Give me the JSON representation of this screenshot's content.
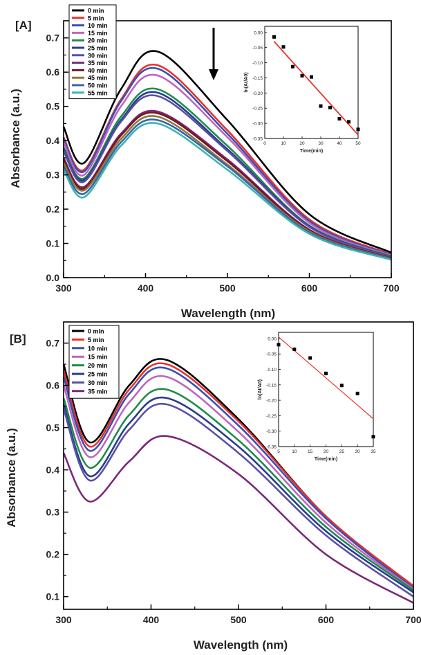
{
  "chart_data": [
    {
      "type": "line",
      "panel_label": "[A]",
      "xlabel": "Wavelength (nm)",
      "ylabel": "Absorbance (a.u.)",
      "xlim": [
        300,
        700
      ],
      "ylim": [
        0.0,
        0.75
      ],
      "xticks": [
        "300",
        "400",
        "500",
        "600",
        "700"
      ],
      "yticks": [
        "0.0",
        "0.1",
        "0.2",
        "0.3",
        "0.4",
        "0.5",
        "0.6",
        "0.7"
      ],
      "legend_position": "top-left",
      "arrow": "down",
      "colors": [
        "#000000",
        "#e8322b",
        "#3a4fb4",
        "#c064c0",
        "#1e8c4a",
        "#283c8c",
        "#5a50a8",
        "#7a2878",
        "#7a1420",
        "#8c7a3c",
        "#3a64a8",
        "#3cb4b4"
      ],
      "series": [
        {
          "name": "0 min",
          "values": [
            {
              "x": 300,
              "y": 0.44
            },
            {
              "x": 325,
              "y": 0.335
            },
            {
              "x": 370,
              "y": 0.55
            },
            {
              "x": 415,
              "y": 0.66
            },
            {
              "x": 500,
              "y": 0.46
            },
            {
              "x": 600,
              "y": 0.185
            },
            {
              "x": 700,
              "y": 0.073
            }
          ]
        },
        {
          "name": "5 min",
          "values": [
            {
              "x": 300,
              "y": 0.41
            },
            {
              "x": 325,
              "y": 0.315
            },
            {
              "x": 370,
              "y": 0.52
            },
            {
              "x": 415,
              "y": 0.62
            },
            {
              "x": 500,
              "y": 0.43
            },
            {
              "x": 600,
              "y": 0.17
            },
            {
              "x": 700,
              "y": 0.068
            }
          ]
        },
        {
          "name": "10 min",
          "values": [
            {
              "x": 300,
              "y": 0.405
            },
            {
              "x": 325,
              "y": 0.31
            },
            {
              "x": 370,
              "y": 0.515
            },
            {
              "x": 415,
              "y": 0.61
            },
            {
              "x": 500,
              "y": 0.42
            },
            {
              "x": 600,
              "y": 0.165
            },
            {
              "x": 700,
              "y": 0.066
            }
          ]
        },
        {
          "name": "15 min",
          "values": [
            {
              "x": 300,
              "y": 0.395
            },
            {
              "x": 325,
              "y": 0.3
            },
            {
              "x": 370,
              "y": 0.5
            },
            {
              "x": 415,
              "y": 0.59
            },
            {
              "x": 500,
              "y": 0.41
            },
            {
              "x": 600,
              "y": 0.16
            },
            {
              "x": 700,
              "y": 0.064
            }
          ]
        },
        {
          "name": "20 min",
          "values": [
            {
              "x": 300,
              "y": 0.38
            },
            {
              "x": 325,
              "y": 0.29
            },
            {
              "x": 370,
              "y": 0.47
            },
            {
              "x": 415,
              "y": 0.55
            },
            {
              "x": 500,
              "y": 0.385
            },
            {
              "x": 600,
              "y": 0.152
            },
            {
              "x": 700,
              "y": 0.062
            }
          ]
        },
        {
          "name": "25 min",
          "values": [
            {
              "x": 300,
              "y": 0.375
            },
            {
              "x": 325,
              "y": 0.285
            },
            {
              "x": 370,
              "y": 0.46
            },
            {
              "x": 415,
              "y": 0.54
            },
            {
              "x": 500,
              "y": 0.375
            },
            {
              "x": 600,
              "y": 0.15
            },
            {
              "x": 700,
              "y": 0.06
            }
          ]
        },
        {
          "name": "30 min",
          "values": [
            {
              "x": 300,
              "y": 0.37
            },
            {
              "x": 325,
              "y": 0.28
            },
            {
              "x": 370,
              "y": 0.455
            },
            {
              "x": 415,
              "y": 0.53
            },
            {
              "x": 500,
              "y": 0.37
            },
            {
              "x": 600,
              "y": 0.148
            },
            {
              "x": 700,
              "y": 0.059
            }
          ]
        },
        {
          "name": "35 min",
          "values": [
            {
              "x": 300,
              "y": 0.35
            },
            {
              "x": 325,
              "y": 0.265
            },
            {
              "x": 370,
              "y": 0.42
            },
            {
              "x": 415,
              "y": 0.485
            },
            {
              "x": 500,
              "y": 0.345
            },
            {
              "x": 600,
              "y": 0.14
            },
            {
              "x": 700,
              "y": 0.057
            }
          ]
        },
        {
          "name": "40 min",
          "values": [
            {
              "x": 300,
              "y": 0.345
            },
            {
              "x": 325,
              "y": 0.26
            },
            {
              "x": 370,
              "y": 0.415
            },
            {
              "x": 415,
              "y": 0.48
            },
            {
              "x": 500,
              "y": 0.34
            },
            {
              "x": 600,
              "y": 0.138
            },
            {
              "x": 700,
              "y": 0.056
            }
          ]
        },
        {
          "name": "45 min",
          "values": [
            {
              "x": 300,
              "y": 0.335
            },
            {
              "x": 325,
              "y": 0.255
            },
            {
              "x": 370,
              "y": 0.405
            },
            {
              "x": 415,
              "y": 0.47
            },
            {
              "x": 500,
              "y": 0.33
            },
            {
              "x": 600,
              "y": 0.135
            },
            {
              "x": 700,
              "y": 0.055
            }
          ]
        },
        {
          "name": "50 min",
          "values": [
            {
              "x": 300,
              "y": 0.325
            },
            {
              "x": 325,
              "y": 0.245
            },
            {
              "x": 370,
              "y": 0.395
            },
            {
              "x": 415,
              "y": 0.46
            },
            {
              "x": 500,
              "y": 0.325
            },
            {
              "x": 600,
              "y": 0.132
            },
            {
              "x": 700,
              "y": 0.054
            }
          ]
        },
        {
          "name": "55 min",
          "values": [
            {
              "x": 300,
              "y": 0.315
            },
            {
              "x": 325,
              "y": 0.235
            },
            {
              "x": 370,
              "y": 0.385
            },
            {
              "x": 415,
              "y": 0.45
            },
            {
              "x": 500,
              "y": 0.315
            },
            {
              "x": 600,
              "y": 0.128
            },
            {
              "x": 700,
              "y": 0.052
            }
          ]
        }
      ],
      "inset": {
        "type": "scatter",
        "xlabel": "Time(min)",
        "ylabel": "ln(At/A0)",
        "xlim": [
          0,
          50
        ],
        "ylim": [
          -0.35,
          0.02
        ],
        "xticks": [
          "0",
          "10",
          "20",
          "30",
          "40",
          "50"
        ],
        "yticks": [
          "0.00",
          "-0.05",
          "-0.10",
          "-0.15",
          "-0.20",
          "-0.25",
          "-0.30",
          "-0.35"
        ],
        "points": [
          {
            "x": 5,
            "y": -0.015
          },
          {
            "x": 10,
            "y": -0.048
          },
          {
            "x": 15,
            "y": -0.113
          },
          {
            "x": 20,
            "y": -0.143
          },
          {
            "x": 25,
            "y": -0.147
          },
          {
            "x": 30,
            "y": -0.243
          },
          {
            "x": 35,
            "y": -0.248
          },
          {
            "x": 40,
            "y": -0.285
          },
          {
            "x": 45,
            "y": -0.295
          },
          {
            "x": 50,
            "y": -0.32
          }
        ],
        "fit": {
          "x": [
            5,
            50
          ],
          "y": [
            -0.03,
            -0.338
          ]
        },
        "fit_color": "#e8322b"
      }
    },
    {
      "type": "line",
      "panel_label": "[B]",
      "xlabel": "Wavelength (nm)",
      "ylabel": "Absorbance (a.u.)",
      "xlim": [
        300,
        700
      ],
      "ylim": [
        0.07,
        0.75
      ],
      "xticks": [
        "300",
        "400",
        "500",
        "600",
        "700"
      ],
      "yticks": [
        "0.1",
        "0.2",
        "0.3",
        "0.4",
        "0.5",
        "0.6",
        "0.7"
      ],
      "legend_position": "top-left",
      "colors": [
        "#000000",
        "#e8322b",
        "#3a4fb4",
        "#c064c0",
        "#1e8c4a",
        "#283c8c",
        "#5a50a8",
        "#7a2878"
      ],
      "series": [
        {
          "name": "0 min",
          "values": [
            {
              "x": 300,
              "y": 0.65
            },
            {
              "x": 330,
              "y": 0.465
            },
            {
              "x": 375,
              "y": 0.6
            },
            {
              "x": 418,
              "y": 0.66
            },
            {
              "x": 500,
              "y": 0.52
            },
            {
              "x": 600,
              "y": 0.29
            },
            {
              "x": 700,
              "y": 0.125
            }
          ]
        },
        {
          "name": "5 min",
          "values": [
            {
              "x": 300,
              "y": 0.635
            },
            {
              "x": 330,
              "y": 0.455
            },
            {
              "x": 375,
              "y": 0.59
            },
            {
              "x": 418,
              "y": 0.65
            },
            {
              "x": 500,
              "y": 0.515
            },
            {
              "x": 600,
              "y": 0.29
            },
            {
              "x": 700,
              "y": 0.125
            }
          ]
        },
        {
          "name": "10 min",
          "values": [
            {
              "x": 300,
              "y": 0.62
            },
            {
              "x": 330,
              "y": 0.445
            },
            {
              "x": 375,
              "y": 0.58
            },
            {
              "x": 418,
              "y": 0.64
            },
            {
              "x": 500,
              "y": 0.505
            },
            {
              "x": 600,
              "y": 0.285
            },
            {
              "x": 700,
              "y": 0.12
            }
          ]
        },
        {
          "name": "15 min",
          "values": [
            {
              "x": 300,
              "y": 0.6
            },
            {
              "x": 330,
              "y": 0.43
            },
            {
              "x": 375,
              "y": 0.56
            },
            {
              "x": 418,
              "y": 0.62
            },
            {
              "x": 500,
              "y": 0.49
            },
            {
              "x": 600,
              "y": 0.275
            },
            {
              "x": 700,
              "y": 0.118
            }
          ]
        },
        {
          "name": "20 min",
          "values": [
            {
              "x": 300,
              "y": 0.57
            },
            {
              "x": 330,
              "y": 0.405
            },
            {
              "x": 375,
              "y": 0.53
            },
            {
              "x": 418,
              "y": 0.59
            },
            {
              "x": 500,
              "y": 0.47
            },
            {
              "x": 600,
              "y": 0.265
            },
            {
              "x": 700,
              "y": 0.115
            }
          ]
        },
        {
          "name": "25 min",
          "values": [
            {
              "x": 300,
              "y": 0.555
            },
            {
              "x": 330,
              "y": 0.385
            },
            {
              "x": 375,
              "y": 0.51
            },
            {
              "x": 418,
              "y": 0.57
            },
            {
              "x": 500,
              "y": 0.455
            },
            {
              "x": 600,
              "y": 0.255
            },
            {
              "x": 700,
              "y": 0.11
            }
          ]
        },
        {
          "name": "30 min",
          "values": [
            {
              "x": 300,
              "y": 0.545
            },
            {
              "x": 330,
              "y": 0.375
            },
            {
              "x": 375,
              "y": 0.495
            },
            {
              "x": 418,
              "y": 0.555
            },
            {
              "x": 500,
              "y": 0.44
            },
            {
              "x": 600,
              "y": 0.245
            },
            {
              "x": 700,
              "y": 0.1
            }
          ]
        },
        {
          "name": "35 min",
          "values": [
            {
              "x": 300,
              "y": 0.44
            },
            {
              "x": 330,
              "y": 0.325
            },
            {
              "x": 375,
              "y": 0.42
            },
            {
              "x": 418,
              "y": 0.48
            },
            {
              "x": 500,
              "y": 0.39
            },
            {
              "x": 600,
              "y": 0.2
            },
            {
              "x": 700,
              "y": 0.085
            }
          ]
        }
      ],
      "inset": {
        "type": "scatter",
        "xlabel": "Time(min)",
        "ylabel": "ln(At/A0)",
        "xlim": [
          5,
          35
        ],
        "ylim": [
          -0.35,
          0.02
        ],
        "xticks": [
          "5",
          "10",
          "15",
          "20",
          "25",
          "30",
          "35"
        ],
        "yticks": [
          "0.00",
          "-0.05",
          "-0.10",
          "-0.15",
          "-0.20",
          "-0.25",
          "-0.30",
          "-0.35"
        ],
        "points": [
          {
            "x": 5,
            "y": -0.02
          },
          {
            "x": 10,
            "y": -0.035
          },
          {
            "x": 15,
            "y": -0.063
          },
          {
            "x": 20,
            "y": -0.113
          },
          {
            "x": 25,
            "y": -0.152
          },
          {
            "x": 30,
            "y": -0.178
          },
          {
            "x": 35,
            "y": -0.318
          }
        ],
        "fit": {
          "x": [
            5,
            35
          ],
          "y": [
            0.005,
            -0.26
          ]
        },
        "fit_color": "#e8322b"
      }
    }
  ]
}
